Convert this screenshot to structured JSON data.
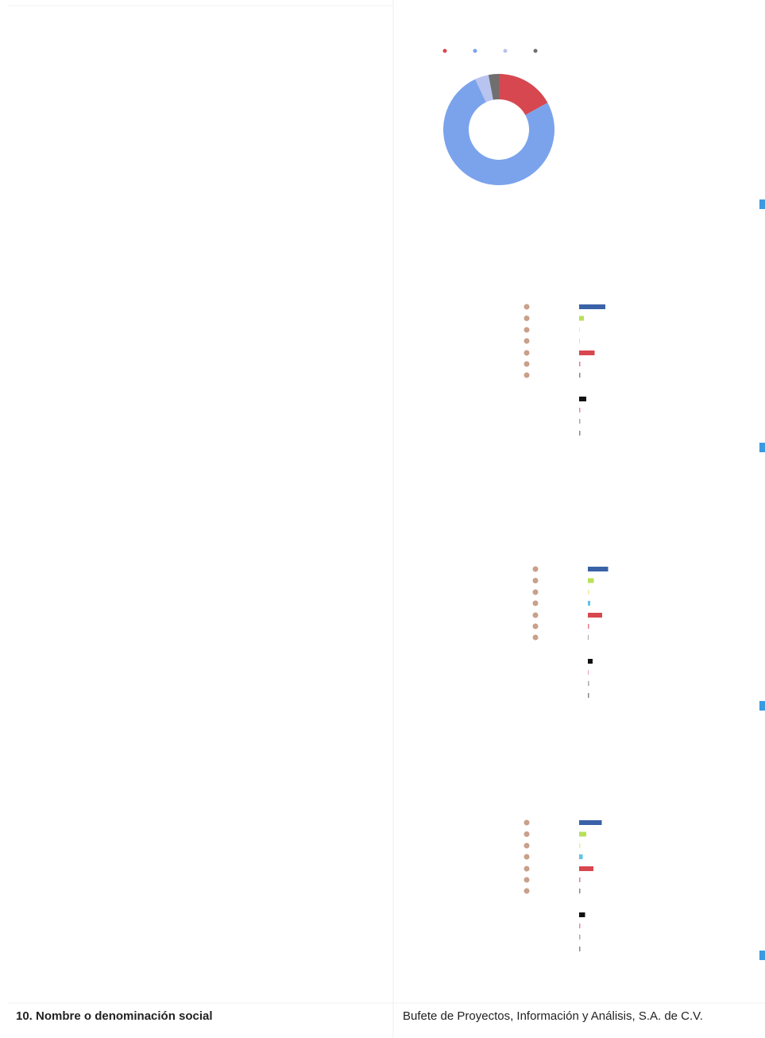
{
  "row": {
    "label": "10. Nombre o denominación social",
    "value": "Bufete de Proyectos, Información y Análisis, S.A. de C.V."
  },
  "charts": [
    {
      "type": "pie",
      "values": [
        17,
        76,
        4,
        3
      ],
      "colors": [
        "#d6474f",
        "#7aa3ec",
        "#b9c3ef",
        "#6f6f6f"
      ]
    },
    {
      "type": "bar",
      "values": [
        22,
        4,
        0.5,
        0.5,
        13,
        1,
        1,
        6,
        1,
        1,
        1
      ],
      "colors": [
        "#3a62a7",
        "#b8e05a",
        "#efd6d6",
        "#cfcfcf",
        "#d9474e",
        "#e77c8a",
        "#888888",
        "#111111",
        "#e88a95",
        "#aaaaaa",
        "#888888"
      ]
    },
    {
      "type": "bar",
      "values": [
        17,
        5,
        1,
        2,
        12,
        1,
        0.5,
        4,
        0.5,
        1,
        1
      ],
      "colors": [
        "#3a62a7",
        "#b8e05a",
        "#f0ec9a",
        "#5ec4ea",
        "#d9474e",
        "#e77c8a",
        "#888888",
        "#111111",
        "#e88a95",
        "#aaaaaa",
        "#888888"
      ]
    },
    {
      "type": "bar",
      "values": [
        19,
        6,
        1,
        3,
        12,
        1,
        1,
        5,
        1,
        1,
        1
      ],
      "colors": [
        "#3a62a7",
        "#b8e05a",
        "#f0ec9a",
        "#5ec4ea",
        "#d9474e",
        "#e77c8a",
        "#888888",
        "#111111",
        "#e88a95",
        "#aaaaaa",
        "#888888"
      ]
    }
  ]
}
